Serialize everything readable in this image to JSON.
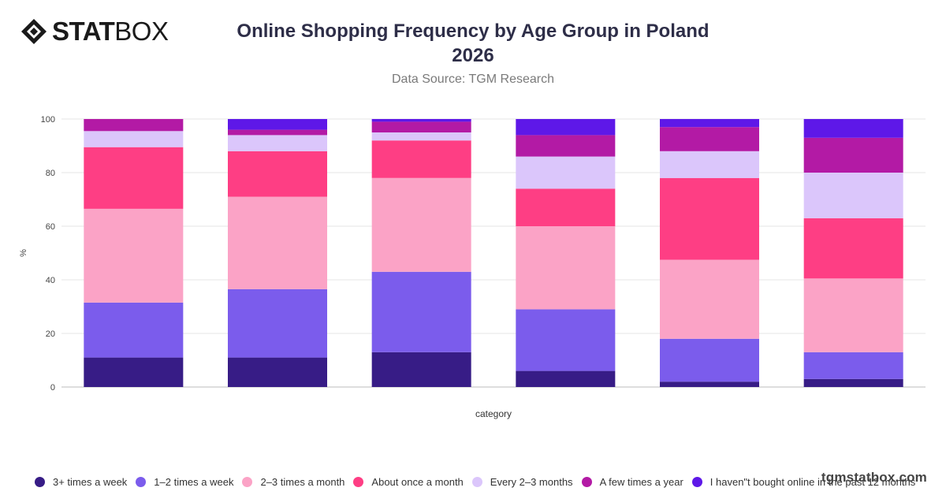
{
  "brand": {
    "logo_text_bold": "STAT",
    "logo_text_light": "BOX",
    "watermark": "tgmstatbox.com"
  },
  "header": {
    "title_line1": "Online Shopping Frequency by Age Group in Poland",
    "title_line2": "2026",
    "subtitle": "Data Source: TGM Research"
  },
  "chart_data": {
    "type": "bar",
    "stacked": true,
    "title": "Online Shopping Frequency by Age Group in Poland 2026",
    "subtitle": "Data Source: TGM Research",
    "xlabel": "category",
    "ylabel": "%",
    "ylim": [
      0,
      100
    ],
    "yticks": [
      0,
      20,
      40,
      60,
      80,
      100
    ],
    "grid": true,
    "legend_position": "bottom",
    "categories": [
      "",
      "",
      "",
      "",
      "",
      ""
    ],
    "series": [
      {
        "name": "3+ times a week",
        "color": "#371c86",
        "values": [
          11,
          11,
          13,
          6,
          2,
          3
        ]
      },
      {
        "name": "1–2 times a week",
        "color": "#7b5cec",
        "values": [
          20.5,
          25.5,
          30,
          23,
          16,
          10
        ]
      },
      {
        "name": "2–3 times a month",
        "color": "#fba3c6",
        "values": [
          35,
          34.5,
          35,
          31,
          29.5,
          27.5
        ]
      },
      {
        "name": "About once a month",
        "color": "#fe3e84",
        "values": [
          23,
          17,
          14,
          14,
          30.5,
          22.5
        ]
      },
      {
        "name": "Every 2–3 months",
        "color": "#dbc6fb",
        "values": [
          6,
          6,
          3,
          12,
          10,
          17
        ]
      },
      {
        "name": "A few times a year",
        "color": "#b31aa5",
        "values": [
          4.5,
          2,
          4,
          8,
          9,
          13
        ]
      },
      {
        "name": "I haven\"t bought online in the past 12 months",
        "color": "#5e18e8",
        "values": [
          0,
          4,
          1,
          6,
          3,
          7
        ]
      }
    ]
  }
}
